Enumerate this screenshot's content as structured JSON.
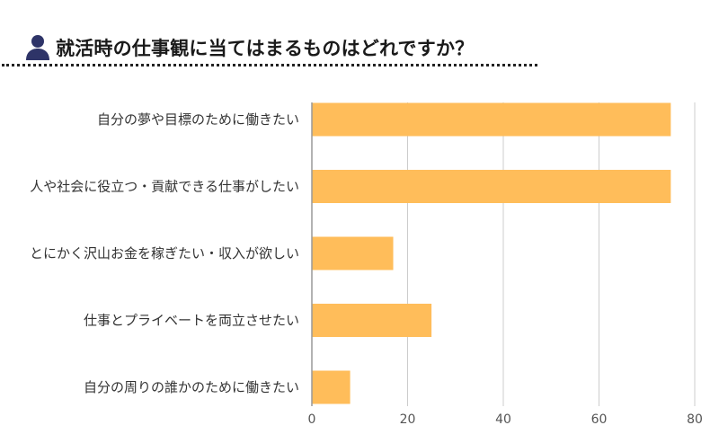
{
  "header": {
    "title": "就活時の仕事観に当てはまるものはどれですか？",
    "icon": "user-icon"
  },
  "colors": {
    "bar": "#FFBD5A",
    "icon": "#2E3468",
    "grid": "#cccccc",
    "axis": "#999999",
    "text": "#333333"
  },
  "chart_data": {
    "type": "bar",
    "orientation": "horizontal",
    "title": "",
    "xlabel": "",
    "ylabel": "",
    "categories": [
      "自分の夢や目標のために働きたい",
      "人や社会に役立つ・貢献できる仕事がしたい",
      "とにかく沢山お金を稼ぎたい・収入が欲しい",
      "仕事とプライベートを両立させたい",
      "自分の周りの誰かのために働きたい"
    ],
    "values": [
      75,
      75,
      17,
      25,
      8
    ],
    "xlim": [
      0,
      80
    ],
    "xticks": [
      0,
      20,
      40,
      60,
      80
    ],
    "grid": "vertical",
    "legend": "none"
  }
}
